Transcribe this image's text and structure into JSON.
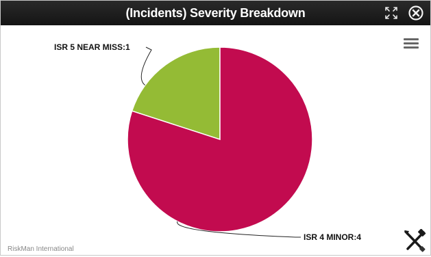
{
  "window": {
    "title": "(Incidents) Severity Breakdown",
    "icons": [
      "expand-icon",
      "close-icon",
      "hamburger-menu-icon",
      "tools-icon"
    ]
  },
  "chart_data": {
    "type": "pie",
    "categories": [
      "ISR 5 NEAR MISS",
      "ISR 4 MINOR"
    ],
    "values": [
      1,
      4
    ],
    "labels": [
      "ISR 5 NEAR MISS:1",
      "ISR 4 MINOR:4"
    ],
    "colors": [
      "#94bb35",
      "#c20b4f"
    ],
    "title": "",
    "legend": "none"
  },
  "footer": {
    "credit": "RiskMan International"
  }
}
